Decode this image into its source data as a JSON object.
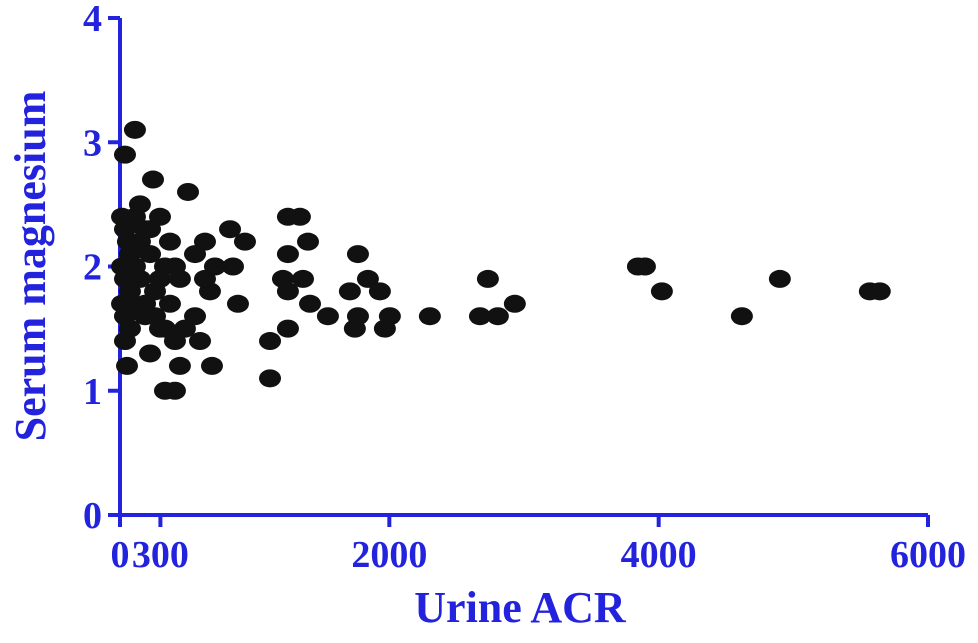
{
  "chart_data": {
    "type": "scatter",
    "x_label": "Urine ACR",
    "y_label": "Serum magnesium",
    "xlim": [
      0,
      6000
    ],
    "ylim": [
      0,
      4
    ],
    "xticks": [
      0,
      300,
      2000,
      4000,
      6000
    ],
    "yticks": [
      0,
      1,
      2,
      3,
      4
    ],
    "axis_color": "#2323dd",
    "color": "#111111",
    "series": [
      {
        "x": [
          37,
          111,
          245,
          505,
          148,
          297,
          817,
          928,
          631,
          371,
          1247,
          1336,
          1396,
          1247,
          1767,
          839,
          1210,
          1359,
          1841,
          2732,
          3846,
          3898,
          4024,
          4900,
          5568,
          5642,
          4618,
          2932,
          2806,
          2673,
          2301,
          2004,
          1930,
          1707,
          1767,
          1744,
          1967,
          1544,
          1411,
          1247,
          1247,
          1114,
          1114,
          876,
          683,
          408,
          334,
          594,
          482,
          557,
          445,
          223,
          52,
          37,
          74,
          186,
          371,
          668,
          631,
          705,
          408,
          445,
          557,
          15,
          37,
          59,
          74,
          15,
          37,
          74,
          15,
          37,
          111,
          148,
          186,
          223,
          148,
          260,
          186,
          297,
          334,
          111,
          223,
          97,
          260,
          334,
          408,
          297
        ],
        "values": [
          2.9,
          3.1,
          2.7,
          2.6,
          2.5,
          2.4,
          2.3,
          2.2,
          2.2,
          2.2,
          2.4,
          2.4,
          2.2,
          2.1,
          2.1,
          2.0,
          1.9,
          1.9,
          1.9,
          1.9,
          2.0,
          2.0,
          1.8,
          1.9,
          1.8,
          1.8,
          1.6,
          1.7,
          1.6,
          1.6,
          1.6,
          1.6,
          1.8,
          1.8,
          1.6,
          1.5,
          1.5,
          1.6,
          1.7,
          1.8,
          1.5,
          1.4,
          1.1,
          1.7,
          1.2,
          1.0,
          1.0,
          1.4,
          1.5,
          1.6,
          1.2,
          1.3,
          1.2,
          1.4,
          1.5,
          1.6,
          1.7,
          1.8,
          1.9,
          2.0,
          2.0,
          1.9,
          2.1,
          2.4,
          2.3,
          2.2,
          2.1,
          2.0,
          1.9,
          1.8,
          1.7,
          1.6,
          2.0,
          2.2,
          2.3,
          2.1,
          1.9,
          1.8,
          1.7,
          1.9,
          2.0,
          2.4,
          2.3,
          1.7,
          1.6,
          1.5,
          1.4,
          1.5
        ]
      }
    ]
  }
}
